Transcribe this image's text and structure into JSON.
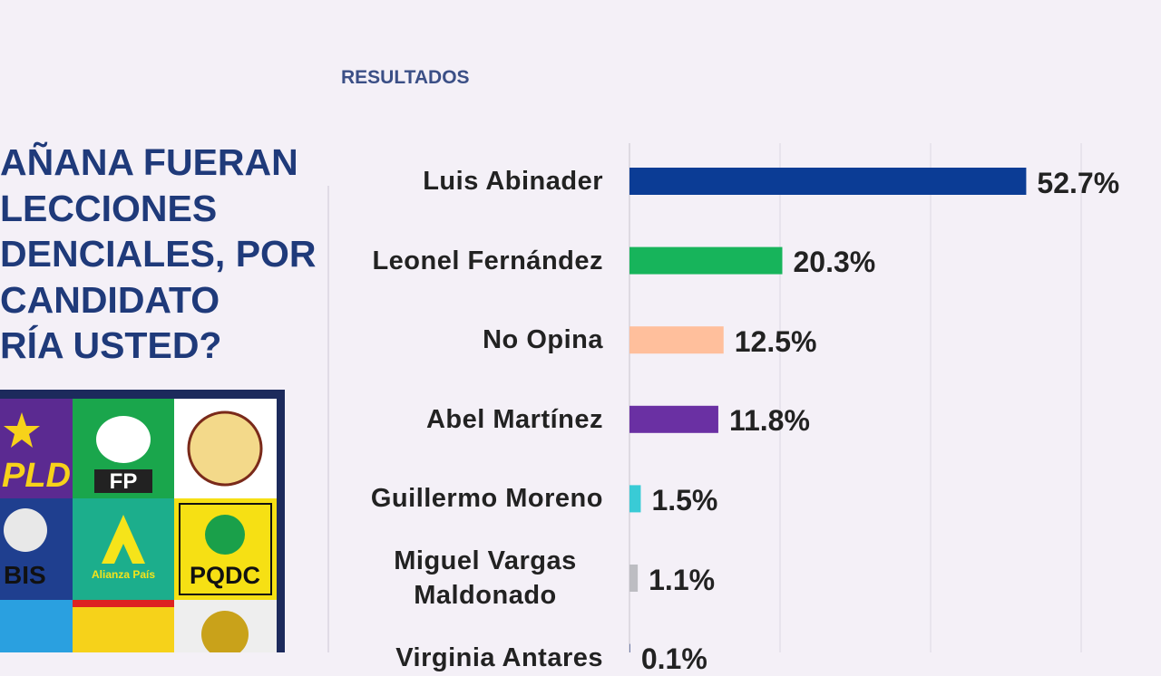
{
  "header": "RESULTADOS",
  "question": [
    "AÑANA FUERAN",
    "LECCIONES",
    "DENCIALES, POR",
    "CANDIDATO",
    "RÍA USTED?"
  ],
  "logos": [
    "PLD",
    "FP",
    "BIS",
    "Alianza País",
    "PQDC"
  ],
  "chart_data": {
    "type": "bar",
    "orientation": "horizontal",
    "categories": [
      "Luis Abinader",
      "Leonel Fernández",
      "No Opina",
      "Abel Martínez",
      "Guillermo Moreno",
      "Miguel Vargas Maldonado",
      "Virginia Antares"
    ],
    "values": [
      52.7,
      20.3,
      12.5,
      11.8,
      1.5,
      1.1,
      0.1
    ],
    "value_labels": [
      "52.7%",
      "20.3%",
      "12.5%",
      "11.8%",
      "1.5%",
      "1.1%",
      "0.1%"
    ],
    "colors": [
      "#0b3c95",
      "#17b45b",
      "#ffbf9c",
      "#6a30a3",
      "#39cbd6",
      "#bdbdc2",
      "#5a6a9a"
    ],
    "xlim": [
      0,
      60
    ],
    "xticks": [
      0,
      20,
      40,
      60
    ],
    "grid": true
  }
}
